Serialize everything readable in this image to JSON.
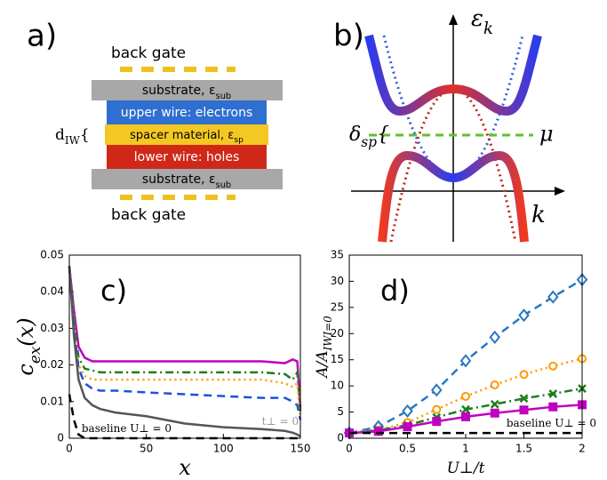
{
  "diagram": {
    "panel_a": {
      "label": "a)",
      "top_gate": "back gate",
      "bottom_gate": "back gate",
      "substrate_top": [
        {
          "t": "substrate, ε"
        },
        {
          "t": "sub",
          "sub": true
        }
      ],
      "upper_wire": [
        {
          "t": "upper wire: electrons"
        }
      ],
      "spacer": [
        {
          "t": "spacer material, ε"
        },
        {
          "t": "sp",
          "sub": true
        }
      ],
      "lower_wire": [
        {
          "t": "lower wire: holes"
        }
      ],
      "substrate_bottom": [
        {
          "t": "substrate, ε"
        },
        {
          "t": "sub",
          "sub": true
        }
      ],
      "thickness": [
        {
          "t": "d"
        },
        {
          "t": "IW",
          "sub": true
        },
        {
          "t": "{"
        }
      ]
    },
    "panel_b": {
      "label": "b)",
      "energy": [
        {
          "t": "ε"
        },
        {
          "t": "k",
          "sub": true
        }
      ],
      "momentum": "k",
      "chemical_potential": "μ",
      "gap": [
        {
          "t": "δ"
        },
        {
          "t": "sp",
          "sub": true
        },
        {
          "t": "{"
        }
      ]
    }
  },
  "chart_data": [
    {
      "type": "line",
      "panel_label": "c)",
      "xlabel": [
        {
          "t": "x"
        }
      ],
      "ylabel": [
        {
          "t": "c"
        },
        {
          "t": "ex",
          "sub": true
        },
        {
          "t": "(x)"
        }
      ],
      "x": [
        0,
        3,
        6,
        10,
        15,
        20,
        30,
        50,
        75,
        100,
        125,
        140,
        145,
        148,
        150
      ],
      "xlim": [
        0,
        150
      ],
      "ylim": [
        0,
        0.05
      ],
      "xticks": [
        0,
        50,
        100,
        150
      ],
      "yticks": [
        0,
        0.01,
        0.02,
        0.03,
        0.04,
        0.05
      ],
      "series": [
        {
          "color": "#c000c0",
          "dash": "solid",
          "values": [
            0.047,
            0.035,
            0.025,
            0.022,
            0.021,
            0.021,
            0.021,
            0.021,
            0.021,
            0.021,
            0.021,
            0.0205,
            0.0215,
            0.021,
            0.008
          ]
        },
        {
          "color": "#1e7d1e",
          "dash": "dash-dot",
          "values": [
            0.047,
            0.033,
            0.022,
            0.019,
            0.0185,
            0.018,
            0.018,
            0.018,
            0.018,
            0.018,
            0.018,
            0.0175,
            0.016,
            0.018,
            0.007
          ]
        },
        {
          "color": "#ff9900",
          "dash": "dotted",
          "values": [
            0.047,
            0.031,
            0.02,
            0.017,
            0.016,
            0.016,
            0.016,
            0.016,
            0.016,
            0.016,
            0.016,
            0.015,
            0.014,
            0.015,
            0.006
          ]
        },
        {
          "color": "#1f4fe0",
          "dash": "dashed",
          "values": [
            0.047,
            0.03,
            0.019,
            0.015,
            0.0135,
            0.013,
            0.013,
            0.0125,
            0.012,
            0.0115,
            0.011,
            0.011,
            0.01,
            0.009,
            0.005
          ]
        },
        {
          "color": "#555555",
          "dash": "solid",
          "values": [
            0.047,
            0.028,
            0.016,
            0.011,
            0.009,
            0.008,
            0.007,
            0.006,
            0.004,
            0.003,
            0.0025,
            0.002,
            0.0015,
            0.001,
            0.0005
          ]
        },
        {
          "color": "#000000",
          "dash": "dashed",
          "values": [
            0.012,
            0.005,
            0.001,
            0,
            0,
            0,
            0,
            0,
            0,
            0,
            0,
            0,
            0,
            0,
            0
          ]
        }
      ],
      "annotations": [
        "t⊥ = 0",
        "baseline U⊥ = 0"
      ]
    },
    {
      "type": "line",
      "panel_label": "d)",
      "xlabel": [
        {
          "t": "U⊥/t"
        }
      ],
      "ylabel": [
        {
          "t": "A/A"
        },
        {
          "t": "IWI=0",
          "sub": true
        }
      ],
      "x": [
        0,
        0.25,
        0.5,
        0.75,
        1,
        1.25,
        1.5,
        1.75,
        2
      ],
      "xlim": [
        0,
        2
      ],
      "ylim": [
        0,
        35
      ],
      "xticks": [
        0,
        0.5,
        1,
        1.5,
        2
      ],
      "yticks": [
        0,
        5,
        10,
        15,
        20,
        25,
        30,
        35
      ],
      "series": [
        {
          "color": "#2878c0",
          "dash": "dashed",
          "marker": "diamond",
          "values": [
            1,
            2.2,
            5.2,
            9.2,
            14.8,
            19.3,
            23.5,
            27,
            30.3
          ]
        },
        {
          "color": "#ff9900",
          "dash": "dotted",
          "marker": "circle",
          "values": [
            1,
            1.6,
            3,
            5.5,
            8,
            10.2,
            12.2,
            13.8,
            15.2
          ]
        },
        {
          "color": "#1e7d1e",
          "dash": "dash-dot",
          "marker": "x",
          "values": [
            1,
            1.5,
            2.5,
            4,
            5.5,
            6.5,
            7.6,
            8.5,
            9.5
          ]
        },
        {
          "color": "#c000c0",
          "dash": "solid",
          "marker": "square",
          "values": [
            1,
            1.3,
            2.2,
            3.2,
            4.1,
            4.8,
            5.4,
            6,
            6.4
          ]
        },
        {
          "color": "#000000",
          "dash": "dashed",
          "values": [
            1,
            1,
            1,
            1,
            1,
            1,
            1,
            1,
            1
          ]
        }
      ],
      "annotations": [
        "baseline U⊥ = 0"
      ]
    }
  ]
}
